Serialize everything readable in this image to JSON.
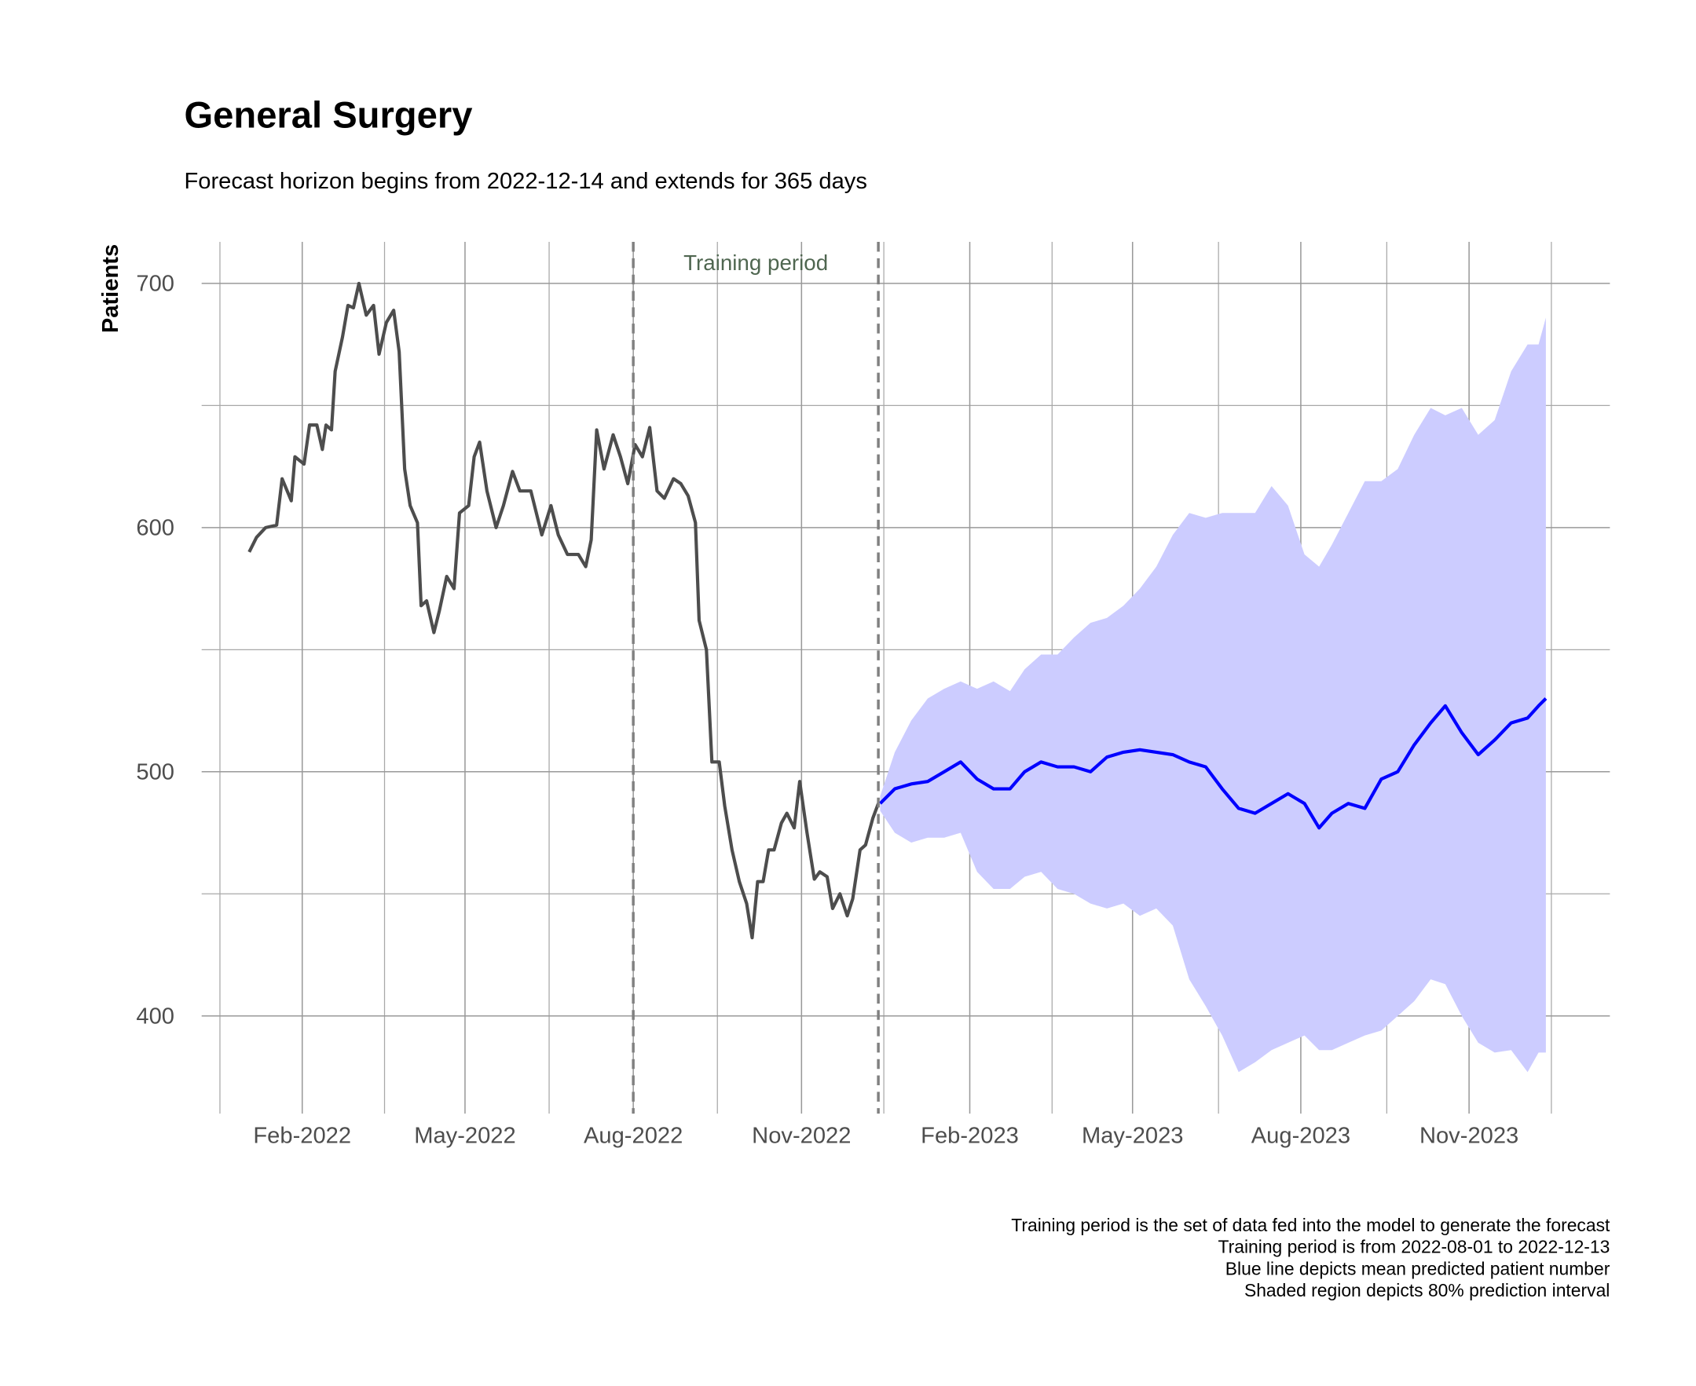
{
  "chart_data": {
    "type": "line",
    "title": "General Surgery",
    "subtitle": "Forecast horizon begins from 2022-12-14 and extends for 365 days",
    "y_label": "Patients",
    "annotation": "Training period",
    "vlines": [
      "2022-08-01",
      "2022-12-13"
    ],
    "caption": [
      "Training period is the set of data fed into the model to generate the forecast",
      "Training period is from 2022-08-01 to 2022-12-13",
      "Blue line depicts mean predicted patient number",
      "Shaded region depicts 80% prediction interval"
    ],
    "xlim": [
      "2021-12-08",
      "2024-01-17"
    ],
    "xticks": [
      {
        "value": "2022-02-01",
        "label": "Feb-2022"
      },
      {
        "value": "2022-05-01",
        "label": "May-2022"
      },
      {
        "value": "2022-08-01",
        "label": "Aug-2022"
      },
      {
        "value": "2022-11-01",
        "label": "Nov-2022"
      },
      {
        "value": "2023-02-01",
        "label": "Feb-2023"
      },
      {
        "value": "2023-05-01",
        "label": "May-2023"
      },
      {
        "value": "2023-08-01",
        "label": "Aug-2023"
      },
      {
        "value": "2023-11-01",
        "label": "Nov-2023"
      }
    ],
    "x_minor_ticks": [
      "2021-12-18",
      "2022-03-18",
      "2022-06-16",
      "2022-09-16",
      "2022-12-16",
      "2023-03-18",
      "2023-06-17",
      "2023-09-17",
      "2023-12-16"
    ],
    "ylim": [
      360,
      717
    ],
    "yticks": [
      400,
      500,
      600,
      700
    ],
    "y_minor_ticks": [
      450,
      550,
      650
    ],
    "grid": true,
    "series": [
      {
        "color": "#4d4d4d",
        "x": [
          "2022-01-03",
          "2022-01-07",
          "2022-01-12",
          "2022-01-18",
          "2022-01-21",
          "2022-01-26",
          "2022-01-28",
          "2022-02-02",
          "2022-02-05",
          "2022-02-09",
          "2022-02-12",
          "2022-02-14",
          "2022-02-17",
          "2022-02-19",
          "2022-02-23",
          "2022-02-26",
          "2022-03-01",
          "2022-03-04",
          "2022-03-08",
          "2022-03-12",
          "2022-03-15",
          "2022-03-19",
          "2022-03-23",
          "2022-03-26",
          "2022-03-29",
          "2022-04-01",
          "2022-04-05",
          "2022-04-07",
          "2022-04-10",
          "2022-04-14",
          "2022-04-17",
          "2022-04-21",
          "2022-04-25",
          "2022-04-28",
          "2022-05-03",
          "2022-05-06",
          "2022-05-09",
          "2022-05-13",
          "2022-05-18",
          "2022-05-22",
          "2022-05-27",
          "2022-05-31",
          "2022-06-06",
          "2022-06-12",
          "2022-06-17",
          "2022-06-21",
          "2022-06-26",
          "2022-07-02",
          "2022-07-06",
          "2022-07-09",
          "2022-07-12",
          "2022-07-16",
          "2022-07-21",
          "2022-07-25",
          "2022-07-29",
          "2022-08-02",
          "2022-08-06",
          "2022-08-10",
          "2022-08-14",
          "2022-08-18",
          "2022-08-23",
          "2022-08-27",
          "2022-08-31",
          "2022-09-04",
          "2022-09-06",
          "2022-09-10",
          "2022-09-13",
          "2022-09-17",
          "2022-09-20",
          "2022-09-24",
          "2022-09-28",
          "2022-10-02",
          "2022-10-05",
          "2022-10-08",
          "2022-10-11",
          "2022-10-14",
          "2022-10-17",
          "2022-10-21",
          "2022-10-24",
          "2022-10-28",
          "2022-10-31",
          "2022-11-04",
          "2022-11-08",
          "2022-11-11",
          "2022-11-15",
          "2022-11-18",
          "2022-11-22",
          "2022-11-26",
          "2022-11-29",
          "2022-12-03",
          "2022-12-06",
          "2022-12-10",
          "2022-12-13"
        ],
        "values": [
          590,
          596,
          600,
          601,
          620,
          611,
          629,
          626,
          642,
          642,
          632,
          642,
          640,
          664,
          678,
          691,
          690,
          700,
          687,
          691,
          671,
          684,
          689,
          672,
          624,
          609,
          602,
          568,
          570,
          557,
          566,
          580,
          575,
          606,
          609,
          629,
          635,
          615,
          600,
          609,
          623,
          615,
          615,
          597,
          609,
          597,
          589,
          589,
          584,
          595,
          640,
          624,
          638,
          629,
          618,
          634,
          629,
          641,
          615,
          612,
          620,
          618,
          613,
          602,
          562,
          550,
          504,
          504,
          486,
          468,
          455,
          446,
          432,
          455,
          455,
          468,
          468,
          479,
          483,
          477,
          496,
          475,
          456,
          459,
          457,
          444,
          450,
          441,
          448,
          468,
          470,
          481,
          487
        ]
      },
      {
        "color": "#0000ff",
        "band_color": "#ccccff",
        "x": [
          "2022-12-14",
          "2022-12-22",
          "2022-12-31",
          "2023-01-09",
          "2023-01-18",
          "2023-01-27",
          "2023-02-05",
          "2023-02-14",
          "2023-02-23",
          "2023-03-03",
          "2023-03-12",
          "2023-03-21",
          "2023-03-30",
          "2023-04-08",
          "2023-04-17",
          "2023-04-26",
          "2023-05-05",
          "2023-05-14",
          "2023-05-23",
          "2023-06-01",
          "2023-06-10",
          "2023-06-19",
          "2023-06-28",
          "2023-07-07",
          "2023-07-16",
          "2023-07-25",
          "2023-08-03",
          "2023-08-11",
          "2023-08-18",
          "2023-08-27",
          "2023-09-05",
          "2023-09-14",
          "2023-09-23",
          "2023-10-02",
          "2023-10-11",
          "2023-10-19",
          "2023-10-28",
          "2023-11-06",
          "2023-11-15",
          "2023-11-24",
          "2023-12-03",
          "2023-12-09",
          "2023-12-13"
        ],
        "values": [
          487,
          493,
          495,
          496,
          500,
          504,
          497,
          493,
          493,
          500,
          504,
          502,
          502,
          500,
          506,
          508,
          509,
          508,
          507,
          504,
          502,
          493,
          485,
          483,
          487,
          491,
          487,
          477,
          483,
          487,
          485,
          497,
          500,
          511,
          520,
          527,
          516,
          507,
          513,
          520,
          522,
          527,
          530
        ],
        "lower": [
          484,
          475,
          471,
          473,
          473,
          475,
          459,
          452,
          452,
          457,
          459,
          452,
          450,
          446,
          444,
          446,
          441,
          444,
          437,
          415,
          404,
          392,
          377,
          381,
          386,
          389,
          392,
          386,
          386,
          389,
          392,
          394,
          400,
          406,
          415,
          413,
          400,
          389,
          385,
          386,
          377,
          385,
          385
        ],
        "upper": [
          490,
          508,
          521,
          530,
          534,
          537,
          534,
          537,
          533,
          542,
          548,
          548,
          555,
          561,
          563,
          568,
          575,
          584,
          597,
          606,
          604,
          606,
          606,
          606,
          617,
          609,
          589,
          584,
          593,
          606,
          619,
          619,
          624,
          638,
          649,
          646,
          649,
          638,
          644,
          664,
          675,
          675,
          686
        ]
      }
    ]
  }
}
